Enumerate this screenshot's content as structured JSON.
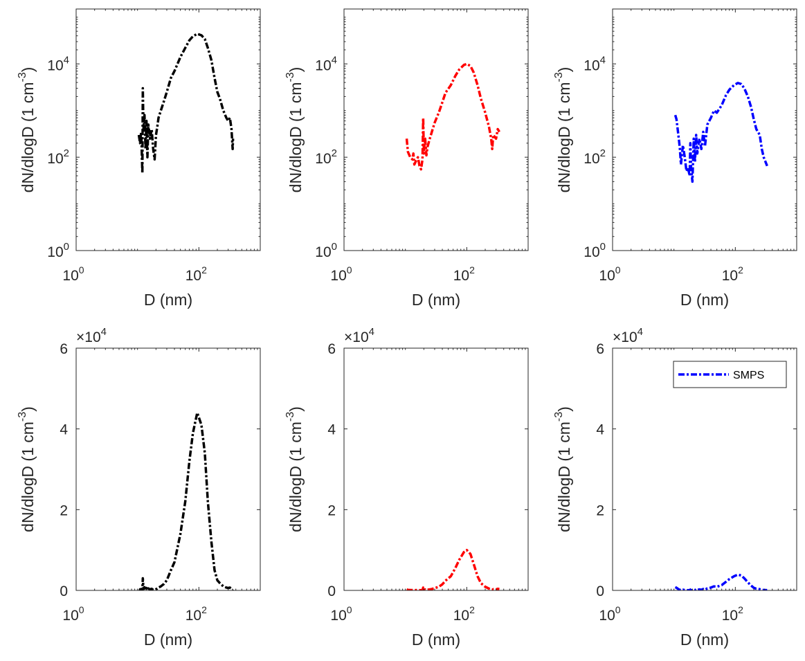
{
  "figure": {
    "legend_label": "SMPS"
  },
  "chart_data": [
    {
      "id": "top-left",
      "type": "line",
      "xscale": "log",
      "yscale": "log",
      "xlim": [
        1,
        1000
      ],
      "ylim": [
        1,
        150000
      ],
      "xlabel": "D (nm)",
      "ylabel": "dN/dlogD (1 cm^-3)",
      "xticks": [
        {
          "base": "10",
          "exp": "0",
          "value": 1
        },
        {
          "base": "10",
          "exp": "2",
          "value": 100
        }
      ],
      "yticks": [
        {
          "base": "10",
          "exp": "0",
          "value": 1
        },
        {
          "base": "10",
          "exp": "2",
          "value": 100
        },
        {
          "base": "10",
          "exp": "4",
          "value": 10000
        }
      ],
      "series": "black"
    },
    {
      "id": "top-middle",
      "type": "line",
      "xscale": "log",
      "yscale": "log",
      "xlim": [
        1,
        1000
      ],
      "ylim": [
        1,
        150000
      ],
      "xlabel": "D (nm)",
      "ylabel": "dN/dlogD (1 cm^-3)",
      "xticks": [
        {
          "base": "10",
          "exp": "0",
          "value": 1
        },
        {
          "base": "10",
          "exp": "2",
          "value": 100
        }
      ],
      "yticks": [
        {
          "base": "10",
          "exp": "0",
          "value": 1
        },
        {
          "base": "10",
          "exp": "2",
          "value": 100
        },
        {
          "base": "10",
          "exp": "4",
          "value": 10000
        }
      ],
      "series": "red"
    },
    {
      "id": "top-right",
      "type": "line",
      "xscale": "log",
      "yscale": "log",
      "xlim": [
        1,
        1000
      ],
      "ylim": [
        1,
        150000
      ],
      "xlabel": "D (nm)",
      "ylabel": "dN/dlogD (1 cm^-3)",
      "xticks": [
        {
          "base": "10",
          "exp": "0",
          "value": 1
        },
        {
          "base": "10",
          "exp": "2",
          "value": 100
        }
      ],
      "yticks": [
        {
          "base": "10",
          "exp": "0",
          "value": 1
        },
        {
          "base": "10",
          "exp": "2",
          "value": 100
        },
        {
          "base": "10",
          "exp": "4",
          "value": 10000
        }
      ],
      "series": "blue"
    },
    {
      "id": "bottom-left",
      "type": "line",
      "xscale": "log",
      "yscale": "linear",
      "xlim": [
        1,
        1000
      ],
      "ylim": [
        0,
        60000
      ],
      "xlabel": "D (nm)",
      "ylabel": "dN/dlogD (1 cm^-3)",
      "multiplier": {
        "base": "×10",
        "exp": "4"
      },
      "xticks": [
        {
          "base": "10",
          "exp": "0",
          "value": 1
        },
        {
          "base": "10",
          "exp": "2",
          "value": 100
        }
      ],
      "yticks": [
        {
          "label": "0",
          "value": 0
        },
        {
          "label": "2",
          "value": 20000
        },
        {
          "label": "4",
          "value": 40000
        },
        {
          "label": "6",
          "value": 60000
        }
      ],
      "series": "black"
    },
    {
      "id": "bottom-middle",
      "type": "line",
      "xscale": "log",
      "yscale": "linear",
      "xlim": [
        1,
        1000
      ],
      "ylim": [
        0,
        60000
      ],
      "xlabel": "D (nm)",
      "ylabel": "dN/dlogD (1 cm^-3)",
      "multiplier": {
        "base": "×10",
        "exp": "4"
      },
      "xticks": [
        {
          "base": "10",
          "exp": "0",
          "value": 1
        },
        {
          "base": "10",
          "exp": "2",
          "value": 100
        }
      ],
      "yticks": [
        {
          "label": "0",
          "value": 0
        },
        {
          "label": "2",
          "value": 20000
        },
        {
          "label": "4",
          "value": 40000
        },
        {
          "label": "6",
          "value": 60000
        }
      ],
      "series": "red"
    },
    {
      "id": "bottom-right",
      "type": "line",
      "xscale": "log",
      "yscale": "linear",
      "xlim": [
        1,
        1000
      ],
      "ylim": [
        0,
        60000
      ],
      "xlabel": "D (nm)",
      "ylabel": "dN/dlogD (1 cm^-3)",
      "multiplier": {
        "base": "×10",
        "exp": "4"
      },
      "xticks": [
        {
          "base": "10",
          "exp": "0",
          "value": 1
        },
        {
          "base": "10",
          "exp": "2",
          "value": 100
        }
      ],
      "yticks": [
        {
          "label": "0",
          "value": 0
        },
        {
          "label": "2",
          "value": 20000
        },
        {
          "label": "4",
          "value": 40000
        },
        {
          "label": "6",
          "value": 60000
        }
      ],
      "series": "blue",
      "legend": {
        "entries": [
          "SMPS"
        ],
        "position": "top-right"
      }
    }
  ],
  "series": {
    "black": {
      "name": "SMPS",
      "color": "#000000",
      "style": "dash-dot",
      "D": [
        10.5,
        11,
        11.5,
        12,
        12.2,
        12.5,
        13,
        13.5,
        14,
        14.5,
        15,
        16,
        17,
        18,
        19,
        20,
        21,
        22,
        24,
        27,
        30,
        35,
        40,
        50,
        60,
        70,
        80,
        94,
        110,
        125,
        140,
        160,
        180,
        200,
        220,
        250,
        280,
        300,
        320,
        340,
        355,
        360
      ],
      "value": [
        300,
        200,
        350,
        45,
        3000,
        400,
        800,
        150,
        600,
        100,
        500,
        250,
        400,
        150,
        90,
        300,
        450,
        700,
        1000,
        1600,
        2500,
        5000,
        7000,
        14000,
        22000,
        32000,
        39000,
        44000,
        41000,
        34000,
        22000,
        12000,
        5000,
        2500,
        1800,
        1000,
        700,
        600,
        700,
        400,
        150,
        250
      ]
    },
    "red": {
      "name": "SMPS",
      "color": "#ff0000",
      "style": "dash-dot",
      "D": [
        10.5,
        11,
        12,
        13,
        13.5,
        14,
        15,
        16,
        17,
        18,
        19,
        19.5,
        20,
        21,
        22,
        23,
        25,
        27,
        30,
        35,
        40,
        45,
        55,
        65,
        75,
        90,
        100,
        115,
        130,
        150,
        170,
        200,
        230,
        250,
        260,
        270,
        300,
        320,
        340
      ],
      "value": [
        250,
        130,
        100,
        90,
        120,
        70,
        85,
        100,
        65,
        55,
        90,
        700,
        120,
        250,
        110,
        170,
        250,
        350,
        550,
        900,
        1500,
        2400,
        3500,
        5500,
        7500,
        9500,
        10000,
        9000,
        6500,
        3500,
        1800,
        900,
        450,
        250,
        150,
        300,
        250,
        400,
        350
      ]
    },
    "blue": {
      "name": "SMPS",
      "color": "#0000ff",
      "style": "dash-dot",
      "D": [
        10.5,
        11,
        12,
        12.5,
        13,
        14,
        15,
        16,
        17,
        18,
        18.5,
        19,
        20,
        21,
        22,
        23,
        24,
        26,
        28,
        30,
        32,
        35,
        40,
        45,
        50,
        60,
        70,
        80,
        95,
        110,
        125,
        140,
        160,
        180,
        200,
        220,
        250,
        270,
        290,
        310,
        330
      ],
      "value": [
        800,
        650,
        250,
        150,
        70,
        180,
        100,
        50,
        60,
        40,
        200,
        60,
        30,
        250,
        80,
        300,
        120,
        250,
        150,
        350,
        170,
        500,
        700,
        1000,
        900,
        1300,
        2100,
        2800,
        3500,
        3900,
        3700,
        3000,
        2000,
        1200,
        650,
        400,
        300,
        150,
        100,
        80,
        65
      ]
    }
  }
}
